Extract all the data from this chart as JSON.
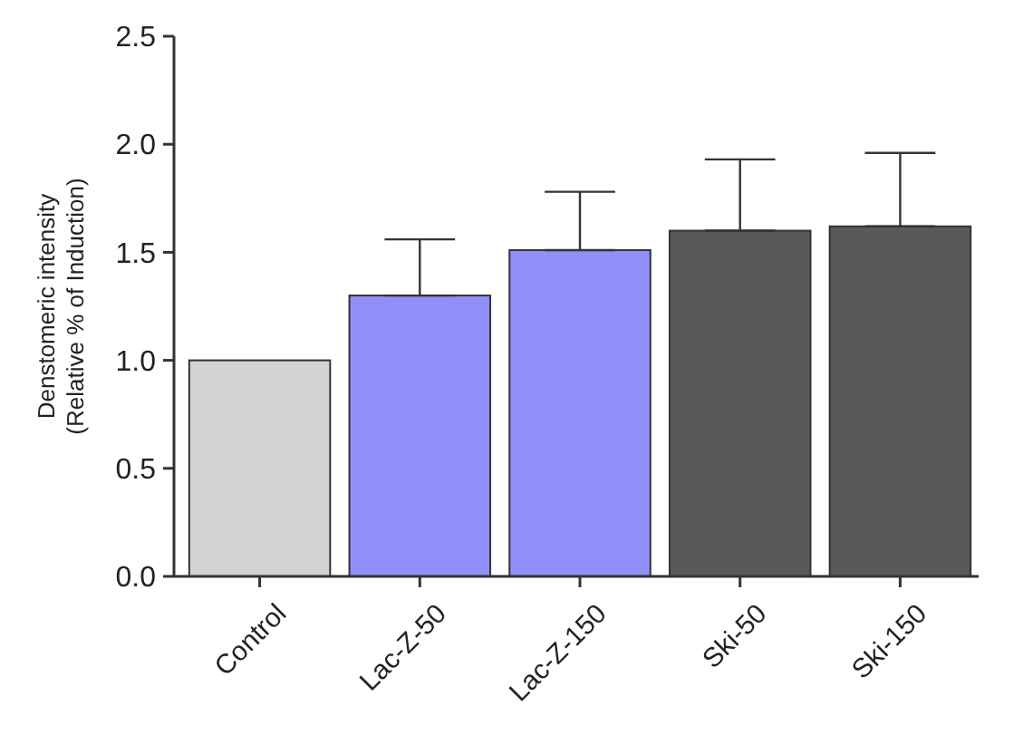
{
  "chart_data": {
    "type": "bar",
    "ylabel": "Denstomeric intensity\n(Relative % of Induction)",
    "categories": [
      "Control",
      "Lac-Z-50",
      "Lac-Z-150",
      "Ski-50",
      "Ski-150"
    ],
    "values": [
      1.0,
      1.3,
      1.51,
      1.6,
      1.62
    ],
    "colors": [
      "#d3d3d3",
      "#8f8ff7",
      "#8f8ff7",
      "#595959",
      "#595959"
    ],
    "errors": [
      null,
      [
        1.3,
        1.56
      ],
      [
        1.51,
        1.78
      ],
      [
        1.6,
        1.93
      ],
      [
        1.62,
        1.96
      ]
    ],
    "ylim": [
      0,
      2.5
    ],
    "yticks": [
      {
        "value": 0,
        "label": "0.0"
      },
      {
        "value": 0.5,
        "label": "0.5"
      },
      {
        "value": 1,
        "label": "1.0"
      },
      {
        "value": 1.5,
        "label": "1.5"
      },
      {
        "value": 2,
        "label": "2.0"
      },
      {
        "value": 2.5,
        "label": "2.5"
      }
    ],
    "grid": false
  }
}
